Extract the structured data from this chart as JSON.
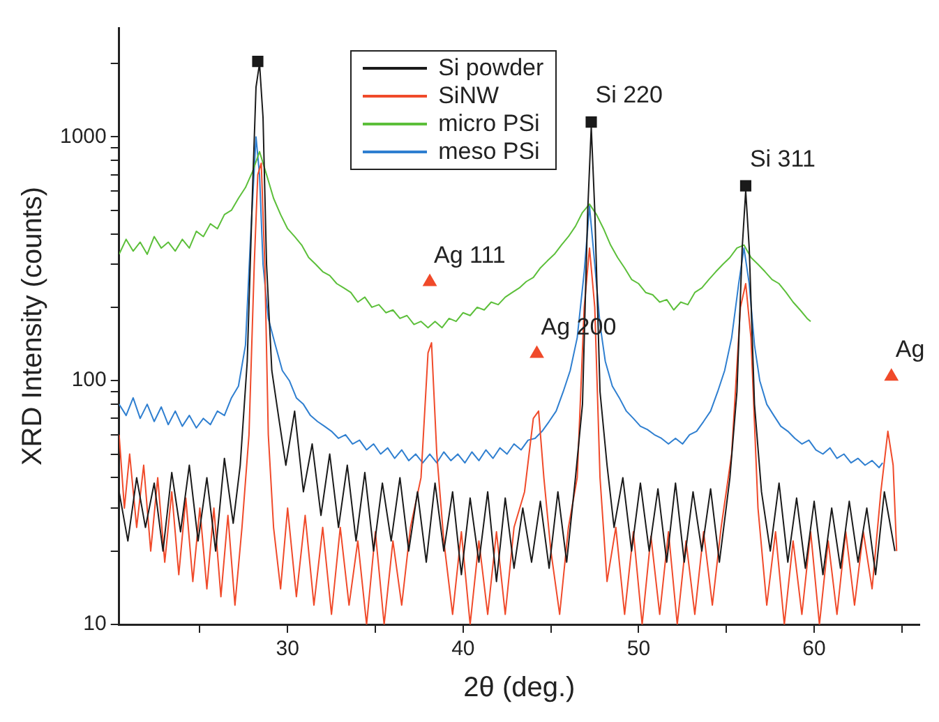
{
  "chart_data": {
    "type": "line",
    "xlabel": "2θ (deg.)",
    "ylabel": "XRD Intensity (counts)",
    "log": "y",
    "grid": false,
    "legend": "top",
    "marker": "none",
    "line_style": "solid",
    "xlim": [
      20.4,
      66
    ],
    "xticks": [
      {
        "value": 25,
        "label": null
      },
      30,
      {
        "value": 35,
        "label": null
      },
      40,
      {
        "value": 45,
        "label": null
      },
      50,
      {
        "value": 55,
        "label": null
      },
      60,
      {
        "value": 65,
        "label": null
      }
    ],
    "ylim": [
      10,
      2800
    ],
    "yticks": [
      10,
      {
        "value": 20,
        "label": null
      },
      {
        "value": 30,
        "label": null
      },
      {
        "value": 40,
        "label": null
      },
      {
        "value": 50,
        "label": null
      },
      {
        "value": 60,
        "label": null
      },
      {
        "value": 70,
        "label": null
      },
      {
        "value": 80,
        "label": null
      },
      {
        "value": 90,
        "label": null
      },
      100,
      {
        "value": 200,
        "label": null
      },
      {
        "value": 300,
        "label": null
      },
      {
        "value": 400,
        "label": null
      },
      {
        "value": 500,
        "label": null
      },
      {
        "value": 600,
        "label": null
      },
      {
        "value": 700,
        "label": null
      },
      {
        "value": 800,
        "label": null
      },
      {
        "value": 900,
        "label": null
      },
      1000,
      {
        "value": 2000,
        "label": null
      }
    ],
    "annotations": [
      {
        "text": "Si 220",
        "x": 47.3,
        "y": 1150
      },
      {
        "text": "Si 311",
        "x": 56.1,
        "y": 630
      },
      {
        "text": "Ag 111",
        "x": 38.1,
        "y": 254
      },
      {
        "text": "Ag 200",
        "x": 44.2,
        "y": 129
      },
      {
        "text": "Ag",
        "x": 64.4,
        "y": 104
      }
    ],
    "series": [
      {
        "name": "Si powder",
        "color": "#1a1a1a",
        "x": [
          20.4,
          20.9,
          21.4,
          21.9,
          22.4,
          22.9,
          23.4,
          23.9,
          24.4,
          24.9,
          25.4,
          25.9,
          26.4,
          26.9,
          27.3,
          27.7,
          28.0,
          28.2,
          28.4,
          28.6,
          28.8,
          29.1,
          29.5,
          29.9,
          30.4,
          30.9,
          31.4,
          31.9,
          32.4,
          32.9,
          33.4,
          33.9,
          34.4,
          34.9,
          35.4,
          35.9,
          36.4,
          36.9,
          37.4,
          37.9,
          38.4,
          38.9,
          39.4,
          39.9,
          40.4,
          40.9,
          41.4,
          41.9,
          42.4,
          42.9,
          43.4,
          43.9,
          44.4,
          44.9,
          45.4,
          45.9,
          46.4,
          46.8,
          47.1,
          47.3,
          47.5,
          47.8,
          48.2,
          48.6,
          49.1,
          49.6,
          50.1,
          50.6,
          51.1,
          51.6,
          52.1,
          52.6,
          53.1,
          53.6,
          54.1,
          54.6,
          55.2,
          55.6,
          55.9,
          56.1,
          56.3,
          56.6,
          57.0,
          57.5,
          58.0,
          58.5,
          59.0,
          59.5,
          60.0,
          60.5,
          61.0,
          61.5,
          62.0,
          62.5,
          63.0,
          63.5,
          64.0,
          64.6
        ],
        "values": [
          35,
          22,
          40,
          25,
          38,
          20,
          42,
          24,
          45,
          22,
          40,
          20,
          48,
          26,
          45,
          120,
          600,
          1600,
          2000,
          1200,
          300,
          110,
          70,
          45,
          75,
          35,
          55,
          28,
          50,
          25,
          45,
          22,
          42,
          20,
          38,
          22,
          40,
          20,
          35,
          18,
          38,
          20,
          35,
          16,
          33,
          18,
          35,
          15,
          33,
          17,
          30,
          18,
          32,
          17,
          35,
          18,
          40,
          80,
          500,
          1100,
          500,
          90,
          45,
          25,
          40,
          20,
          38,
          20,
          36,
          18,
          38,
          18,
          35,
          20,
          36,
          18,
          40,
          90,
          350,
          600,
          350,
          80,
          35,
          20,
          38,
          18,
          33,
          17,
          32,
          16,
          30,
          17,
          32,
          18,
          30,
          16,
          35,
          20
        ]
      },
      {
        "name": "SiNW",
        "color": "#f04a2a",
        "x": [
          20.4,
          20.7,
          21.0,
          21.4,
          21.8,
          22.2,
          22.6,
          23.0,
          23.4,
          23.8,
          24.2,
          24.6,
          25.0,
          25.4,
          25.8,
          26.2,
          26.6,
          27.0,
          27.4,
          27.8,
          28.1,
          28.3,
          28.5,
          28.7,
          28.9,
          29.2,
          29.6,
          30.0,
          30.5,
          31.0,
          31.5,
          32.0,
          32.5,
          33.0,
          33.5,
          34.0,
          34.5,
          35.0,
          35.5,
          36.0,
          36.5,
          37.0,
          37.6,
          38.0,
          38.2,
          38.5,
          38.9,
          39.4,
          39.9,
          40.4,
          40.9,
          41.4,
          41.9,
          42.4,
          42.9,
          43.5,
          44.0,
          44.3,
          44.6,
          45.0,
          45.5,
          46.0,
          46.5,
          46.9,
          47.2,
          47.5,
          47.8,
          48.2,
          48.7,
          49.2,
          49.7,
          50.2,
          50.7,
          51.2,
          51.7,
          52.2,
          52.7,
          53.2,
          53.7,
          54.2,
          54.7,
          55.3,
          55.8,
          56.1,
          56.4,
          56.8,
          57.3,
          57.8,
          58.3,
          58.8,
          59.3,
          59.8,
          60.3,
          60.8,
          61.3,
          61.8,
          62.3,
          62.8,
          63.3,
          63.8,
          64.2,
          64.5,
          64.7
        ],
        "values": [
          60,
          30,
          50,
          25,
          45,
          20,
          40,
          18,
          35,
          16,
          33,
          15,
          30,
          14,
          30,
          13,
          28,
          12,
          25,
          60,
          300,
          700,
          780,
          300,
          60,
          25,
          14,
          30,
          13,
          28,
          12,
          25,
          11,
          25,
          12,
          22,
          10,
          24,
          10,
          22,
          12,
          25,
          40,
          130,
          143,
          50,
          22,
          11,
          24,
          10,
          22,
          11,
          24,
          11,
          25,
          35,
          70,
          75,
          40,
          20,
          11,
          25,
          40,
          200,
          350,
          200,
          40,
          15,
          25,
          11,
          24,
          10,
          23,
          11,
          24,
          10,
          22,
          11,
          24,
          12,
          25,
          50,
          200,
          250,
          150,
          30,
          12,
          24,
          10,
          22,
          11,
          24,
          10,
          22,
          11,
          24,
          12,
          24,
          14,
          35,
          62,
          45,
          20
        ]
      },
      {
        "name": "micro PSi",
        "color": "#5cbf3a",
        "x": [
          20.4,
          20.8,
          21.2,
          21.6,
          22.0,
          22.4,
          22.8,
          23.2,
          23.6,
          24.0,
          24.4,
          24.8,
          25.2,
          25.6,
          26.0,
          26.4,
          26.8,
          27.2,
          27.6,
          28.0,
          28.4,
          28.8,
          29.2,
          29.6,
          30.0,
          30.4,
          30.8,
          31.2,
          31.6,
          32.0,
          32.4,
          32.8,
          33.2,
          33.6,
          34.0,
          34.4,
          34.8,
          35.2,
          35.6,
          36.0,
          36.4,
          36.8,
          37.2,
          37.6,
          38.0,
          38.4,
          38.8,
          39.2,
          39.6,
          40.0,
          40.4,
          40.8,
          41.2,
          41.6,
          42.0,
          42.4,
          42.8,
          43.2,
          43.6,
          44.0,
          44.4,
          44.8,
          45.2,
          45.6,
          46.0,
          46.4,
          46.8,
          47.2,
          47.6,
          48.0,
          48.4,
          48.8,
          49.2,
          49.6,
          50.0,
          50.4,
          50.8,
          51.2,
          51.6,
          52.0,
          52.4,
          52.8,
          53.2,
          53.6,
          54.0,
          54.4,
          54.8,
          55.2,
          55.6,
          56.0,
          56.4,
          56.8,
          57.2,
          57.6,
          58.0,
          58.4,
          58.8,
          59.2,
          59.6,
          59.8
        ],
        "values": [
          330,
          380,
          340,
          370,
          330,
          390,
          350,
          370,
          340,
          380,
          350,
          410,
          390,
          440,
          420,
          480,
          500,
          560,
          620,
          720,
          870,
          700,
          560,
          480,
          420,
          390,
          360,
          320,
          300,
          280,
          270,
          250,
          240,
          230,
          210,
          220,
          200,
          205,
          190,
          195,
          180,
          185,
          170,
          175,
          165,
          175,
          165,
          180,
          175,
          190,
          185,
          200,
          195,
          210,
          205,
          220,
          230,
          240,
          255,
          265,
          290,
          310,
          330,
          360,
          390,
          430,
          490,
          530,
          480,
          420,
          360,
          320,
          290,
          260,
          250,
          230,
          225,
          210,
          215,
          195,
          210,
          205,
          230,
          240,
          260,
          280,
          300,
          320,
          350,
          360,
          320,
          300,
          280,
          260,
          250,
          230,
          210,
          195,
          180,
          175
        ]
      },
      {
        "name": "meso PSi",
        "color": "#2f7fd0",
        "x": [
          20.4,
          20.8,
          21.2,
          21.6,
          22.0,
          22.4,
          22.8,
          23.2,
          23.6,
          24.0,
          24.4,
          24.8,
          25.2,
          25.6,
          26.0,
          26.4,
          26.8,
          27.2,
          27.6,
          27.9,
          28.2,
          28.4,
          28.6,
          28.9,
          29.3,
          29.7,
          30.1,
          30.5,
          30.9,
          31.3,
          31.7,
          32.1,
          32.5,
          32.9,
          33.3,
          33.7,
          34.1,
          34.5,
          34.9,
          35.3,
          35.7,
          36.1,
          36.5,
          36.9,
          37.3,
          37.7,
          38.1,
          38.5,
          38.9,
          39.3,
          39.7,
          40.1,
          40.5,
          40.9,
          41.3,
          41.7,
          42.1,
          42.5,
          42.9,
          43.3,
          43.7,
          44.1,
          44.5,
          44.9,
          45.3,
          45.7,
          46.1,
          46.5,
          46.9,
          47.2,
          47.5,
          47.8,
          48.1,
          48.5,
          48.9,
          49.3,
          49.7,
          50.1,
          50.5,
          50.9,
          51.3,
          51.7,
          52.1,
          52.5,
          52.9,
          53.3,
          53.7,
          54.1,
          54.5,
          54.9,
          55.3,
          55.7,
          56.0,
          56.3,
          56.6,
          56.9,
          57.3,
          57.7,
          58.1,
          58.5,
          58.9,
          59.3,
          59.7,
          60.1,
          60.5,
          60.9,
          61.3,
          61.7,
          62.1,
          62.5,
          62.9,
          63.3,
          63.7,
          63.9
        ],
        "values": [
          80,
          72,
          85,
          70,
          80,
          68,
          78,
          66,
          75,
          65,
          72,
          64,
          70,
          66,
          75,
          72,
          85,
          95,
          140,
          400,
          1000,
          700,
          300,
          180,
          140,
          110,
          100,
          85,
          80,
          72,
          68,
          65,
          62,
          58,
          60,
          55,
          57,
          52,
          55,
          50,
          53,
          48,
          52,
          47,
          50,
          46,
          50,
          46,
          51,
          47,
          50,
          46,
          51,
          47,
          52,
          48,
          53,
          50,
          55,
          52,
          57,
          58,
          62,
          68,
          75,
          90,
          110,
          150,
          280,
          520,
          300,
          170,
          120,
          95,
          85,
          75,
          70,
          65,
          63,
          60,
          58,
          55,
          58,
          55,
          60,
          62,
          68,
          75,
          90,
          110,
          150,
          250,
          350,
          250,
          140,
          100,
          80,
          72,
          65,
          62,
          58,
          55,
          57,
          52,
          50,
          53,
          48,
          50,
          46,
          48,
          45,
          47,
          44,
          46
        ]
      },
      {
        "type": "scatter",
        "marker": "square",
        "color": "#1a1a1a",
        "x": [
          28.3,
          47.3,
          56.1
        ],
        "values": [
          2040,
          1150,
          630
        ]
      },
      {
        "type": "scatter",
        "marker": "triangle",
        "color": "#f04a2a",
        "x": [
          38.1,
          44.2,
          64.4
        ],
        "values": [
          254,
          129,
          104
        ]
      }
    ]
  }
}
